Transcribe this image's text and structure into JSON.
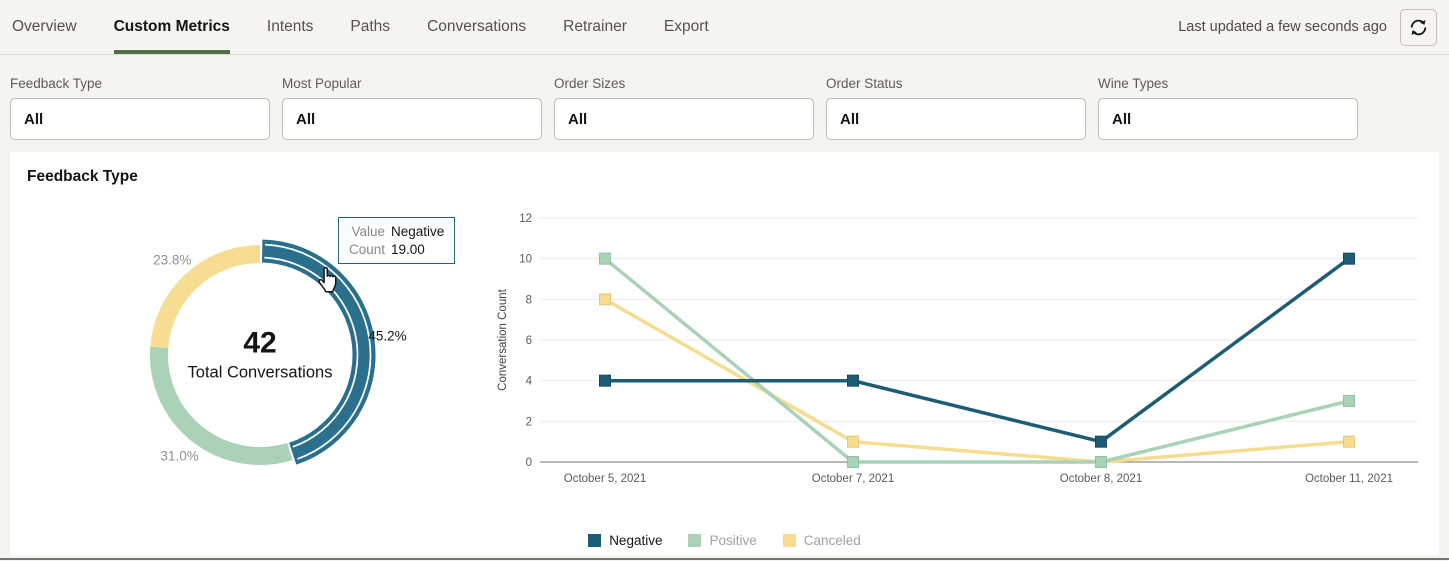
{
  "ui": {
    "accent_green": "#4f7040",
    "tooltip_border": "#20667b",
    "page_bg": "#f5f4f1",
    "panel_bg": "#ffffff"
  },
  "tabs": {
    "items": [
      {
        "label": "Overview",
        "active": false
      },
      {
        "label": "Custom Metrics",
        "active": true
      },
      {
        "label": "Intents",
        "active": false
      },
      {
        "label": "Paths",
        "active": false
      },
      {
        "label": "Conversations",
        "active": false
      },
      {
        "label": "Retrainer",
        "active": false
      },
      {
        "label": "Export",
        "active": false
      }
    ]
  },
  "header": {
    "last_updated": "Last updated a few seconds ago",
    "refresh_icon": "refresh-icon"
  },
  "filters": [
    {
      "label": "Feedback Type",
      "value": "All"
    },
    {
      "label": "Most Popular",
      "value": "All"
    },
    {
      "label": "Order Sizes",
      "value": "All"
    },
    {
      "label": "Order Status",
      "value": "All"
    },
    {
      "label": "Wine Types",
      "value": "All"
    }
  ],
  "panel": {
    "title": "Feedback Type"
  },
  "chart_data": [
    {
      "type": "pie",
      "title": "Feedback Type",
      "total": 42,
      "center_value": "42",
      "center_label": "Total Conversations",
      "slices": [
        {
          "label": "Negative",
          "count": 19,
          "pct": "45.2%",
          "color": "#2a708c",
          "highlighted": true,
          "pct_color": "#161513"
        },
        {
          "label": "Positive",
          "count": 13,
          "pct": "31.0%",
          "color": "#a9d2b6",
          "highlighted": false,
          "pct_color": "#918f8a"
        },
        {
          "label": "Canceled",
          "count": 10,
          "pct": "23.8%",
          "color": "#f7dd92",
          "highlighted": false,
          "pct_color": "#918f8a"
        }
      ],
      "tooltip": {
        "rows": [
          {
            "label": "Value",
            "value": "Negative"
          },
          {
            "label": "Count",
            "value": "19.00"
          }
        ]
      }
    },
    {
      "type": "line",
      "x": [
        "October 5, 2021",
        "October 7, 2021",
        "October 8, 2021",
        "October 11, 2021"
      ],
      "ylabel": "Conversation Count",
      "ylim": [
        0,
        12
      ],
      "yticks": [
        0,
        2,
        4,
        6,
        8,
        10,
        12
      ],
      "grid": true,
      "legend_position": "bottom",
      "series": [
        {
          "name": "Negative",
          "values": [
            4,
            4,
            1,
            10
          ],
          "color": "#1d5c73",
          "marker_stroke": "#134a5e",
          "legend_text_color": "#161513"
        },
        {
          "name": "Positive",
          "values": [
            10,
            0,
            0,
            3
          ],
          "color": "#a9d2b6",
          "marker_stroke": "#8ec2a0",
          "legend_text_color": "#a3a19c"
        },
        {
          "name": "Canceled",
          "values": [
            8,
            1,
            0,
            1
          ],
          "color": "#f6dc8f",
          "marker_stroke": "#e4c877",
          "legend_text_color": "#a3a19c"
        }
      ]
    }
  ]
}
